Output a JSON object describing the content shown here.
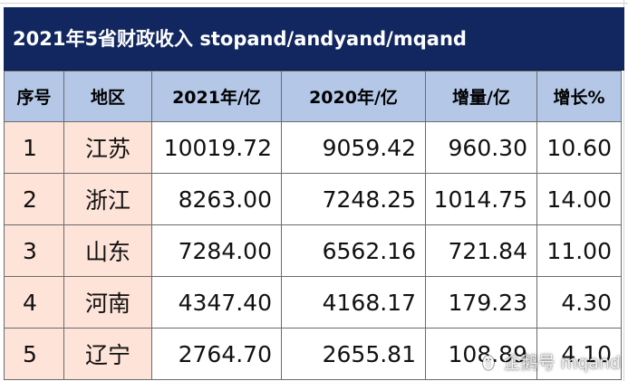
{
  "title": "2021年5省财政收入 stopand/andyand/mqand",
  "table": {
    "headers": [
      "序号",
      "地区",
      "2021年/亿",
      "2020年/亿",
      "增量/亿",
      "增长%"
    ],
    "rows": [
      {
        "rank": "1",
        "region": "江苏",
        "y2021": "10019.72",
        "y2020": "9059.42",
        "increase": "960.30",
        "growth": "10.60"
      },
      {
        "rank": "2",
        "region": "浙江",
        "y2021": "8263.00",
        "y2020": "7248.25",
        "increase": "1014.75",
        "growth": "14.00"
      },
      {
        "rank": "3",
        "region": "山东",
        "y2021": "7284.00",
        "y2020": "6562.16",
        "increase": "721.84",
        "growth": "11.00"
      },
      {
        "rank": "4",
        "region": "河南",
        "y2021": "4347.40",
        "y2020": "4168.17",
        "increase": "179.23",
        "growth": "4.30"
      },
      {
        "rank": "5",
        "region": "辽宁",
        "y2021": "2764.70",
        "y2020": "2655.81",
        "increase": "108.89",
        "growth": "4.10"
      }
    ]
  },
  "watermark": {
    "text": "企鹅号 mqand",
    "icon": "penguin-icon"
  },
  "colors": {
    "title_bg": "#12275f",
    "header_bg": "#b4c7e7",
    "label_col_bg": "#fde3d8"
  }
}
